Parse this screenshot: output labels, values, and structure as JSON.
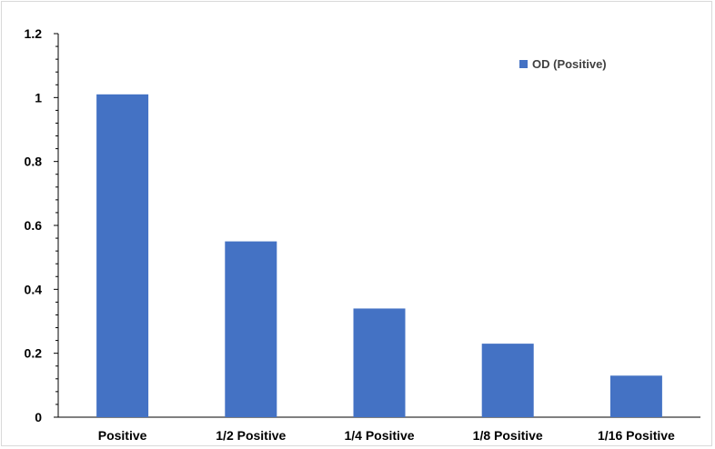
{
  "chart_data": {
    "type": "bar",
    "categories": [
      "Positive",
      "1/2 Positive",
      "1/4 Positive",
      "1/8 Positive",
      "1/16 Positive"
    ],
    "series": [
      {
        "name": "OD (Positive)",
        "values": [
          1.01,
          0.55,
          0.34,
          0.23,
          0.13
        ],
        "color": "#4472C4"
      }
    ],
    "title": "",
    "xlabel": "",
    "ylabel": "",
    "ylim": [
      0,
      1.2
    ],
    "yticks": [
      0,
      0.2,
      0.4,
      0.6,
      0.8,
      1,
      1.2
    ],
    "ytick_labels": [
      "0",
      "0.2",
      "0.4",
      "0.6",
      "0.8",
      "1",
      "1.2"
    ],
    "grid": false,
    "legend": {
      "position": "top-right",
      "label": "OD (Positive)"
    }
  }
}
